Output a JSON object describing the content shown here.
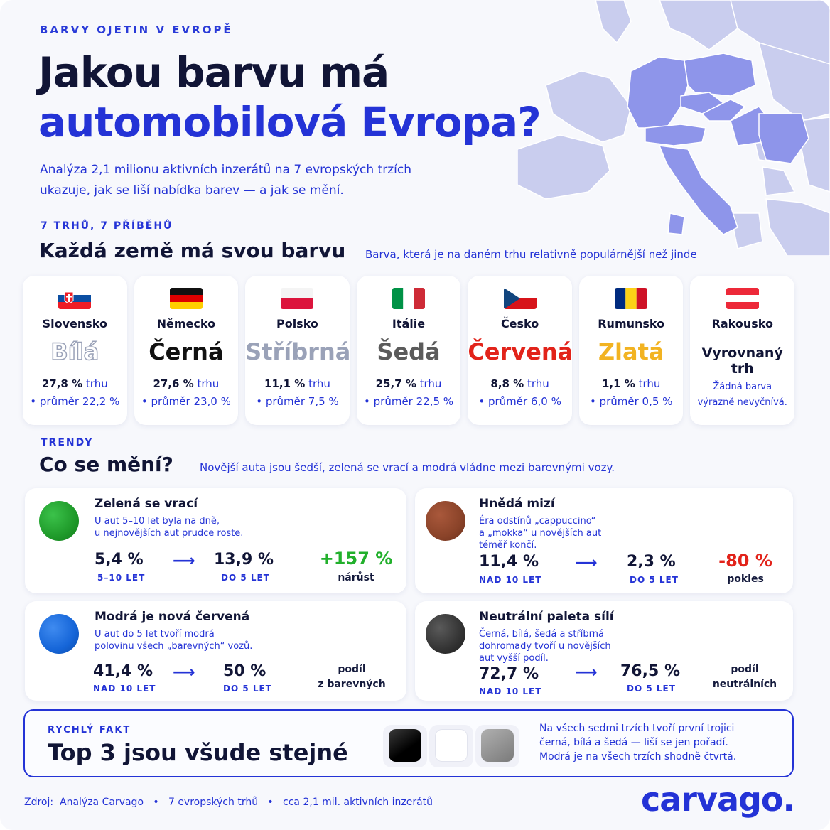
{
  "header": {
    "eyebrow": "BARVY OJETIN V EVROPĚ",
    "title_line1": "Jakou barvu má",
    "title_line2": "automobilová Evropa?",
    "intro_line1": "Analýza 2,1 milionu aktivních inzerátů na 7 evropských trzích",
    "intro_line2": "ukazuje, jak se liší nabídka barev — a jak se mění."
  },
  "markets": {
    "eyebrow": "7 TRHŮ, 7 PŘÍBĚHŮ",
    "title": "Každá země má svou barvu",
    "note": "Barva, která je na daném trhu relativně populárnější než jinde",
    "share_suffix": "trhu",
    "countries": [
      {
        "name": "Slovensko",
        "color_name": "Bílá",
        "color": "#ffffff",
        "share": "27,8 %",
        "average": "• průměr 22,2 %",
        "flag": "slovakia-flag-icon"
      },
      {
        "name": "Německo",
        "color_name": "Černá",
        "color": "#111111",
        "share": "27,6 %",
        "average": "• průměr 23,0 %",
        "flag": "germany-flag-icon"
      },
      {
        "name": "Polsko",
        "color_name": "Stříbrná",
        "color": "#9aa2b8",
        "share": "11,1 %",
        "average": "• průměr 7,5 %",
        "flag": "poland-flag-icon"
      },
      {
        "name": "Itálie",
        "color_name": "Šedá",
        "color": "#5b5b5b",
        "share": "25,7 %",
        "average": "• průměr 22,5 %",
        "flag": "italy-flag-icon"
      },
      {
        "name": "Česko",
        "color_name": "Červená",
        "color": "#e2231a",
        "share": "8,8 %",
        "average": "• průměr 6,0 %",
        "flag": "czechia-flag-icon"
      },
      {
        "name": "Rumunsko",
        "color_name": "Zlatá",
        "color": "#f2b322",
        "share": "1,1 %",
        "average": "• průměr 0,5 %",
        "flag": "romania-flag-icon"
      },
      {
        "name": "Rakousko",
        "color_name": "Vyrovnaný trh",
        "color": "#111536",
        "note_line1": "Žádná barva",
        "note_line2": "výrazně nevyčnívá.",
        "flag": "austria-flag-icon"
      }
    ]
  },
  "trends": {
    "eyebrow": "TRENDY",
    "title": "Co se mění?",
    "note": "Novější auta jsou šedší, zelená se vrací a modrá vládne mezi barevnými vozy.",
    "cards": [
      {
        "title": "Zelená se vrací",
        "desc_lines": [
          "U aut 5–10 let byla na dně,",
          "u nejnovějších aut prudce roste."
        ],
        "ball_color": "#1f9a2a",
        "from_value": "5,4 %",
        "from_label": "5–10 LET",
        "to_value": "13,9 %",
        "to_label": "DO 5 LET",
        "change": "+157 %",
        "change_color": "#22b02c",
        "change_label": "nárůst"
      },
      {
        "title": "Hnědá mizí",
        "desc_lines": [
          "Éra odstínů „cappuccino“",
          "a „mokka“ u novějších aut",
          "téměř končí."
        ],
        "ball_color": "#8a4329",
        "from_value": "11,4 %",
        "from_label": "NAD 10 LET",
        "to_value": "2,3 %",
        "to_label": "DO 5 LET",
        "change": "-80 %",
        "change_color": "#e2231a",
        "change_label": "pokles"
      },
      {
        "title": "Modrá je nová červená",
        "desc_lines": [
          "U aut do 5 let tvoří modrá",
          "polovinu všech „barevných“ vozů."
        ],
        "ball_color": "#1565d8",
        "from_value": "41,4 %",
        "from_label": "NAD 10 LET",
        "to_value": "50 %",
        "to_label": "DO 5 LET",
        "label_line1": "podíl",
        "label_line2": "z barevných"
      },
      {
        "title": "Neutrální paleta sílí",
        "desc_lines": [
          "Černá, bílá, šedá a stříbrná",
          "dohromady tvoří u novějších",
          "aut vyšší podíl."
        ],
        "ball_color": "#3a3a3a",
        "from_value": "72,7 %",
        "from_label": "NAD 10 LET",
        "to_value": "76,5 %",
        "to_label": "DO 5 LET",
        "label_line1": "podíl",
        "label_line2": "neutrálních"
      }
    ]
  },
  "fact": {
    "eyebrow": "RYCHLÝ FAKT",
    "title": "Top 3 jsou všude stejné",
    "swatches": [
      "#0a0a0a",
      "#ffffff",
      "#8a8a8a"
    ],
    "text_line1": "Na všech sedmi trzích tvoří první trojici",
    "text_line2": "černá, bílá a šedá — liší se jen pořadí.",
    "text_line3": "Modrá je na všech trzích shodně čtvrtá."
  },
  "footer": {
    "source": "Zdroj:  Analýza Carvago   •   7 evropských trhů   •   cca 2,1 mil. aktivních inzerátů",
    "logo": "carvago."
  }
}
